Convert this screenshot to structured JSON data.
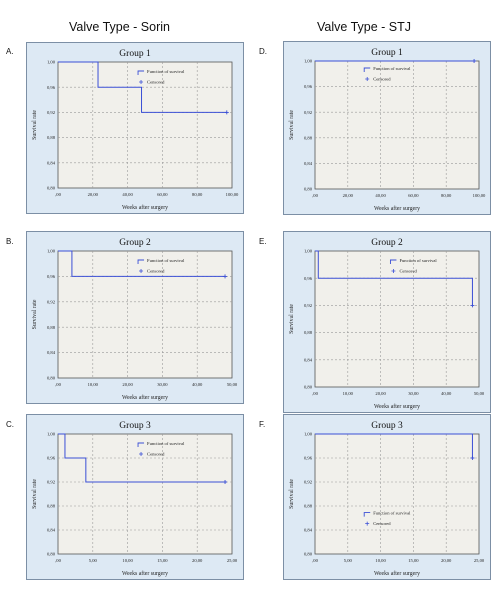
{
  "columns": [
    {
      "title": "Valve Type - Sorin"
    },
    {
      "title": "Valve Type - STJ"
    }
  ],
  "colors": {
    "panel_bg": "#dde9f4",
    "panel_border": "#7c8fa5",
    "plot_bg": "#f1f0eb",
    "line": "#3b4fd6",
    "grid": "#9a9a9a"
  },
  "chart_data": [
    {
      "type": "line",
      "panel_label": "A.",
      "title": "Group 1",
      "xlabel": "Weeks after surgery",
      "ylabel": "Survival rate",
      "xlim": [
        0,
        100
      ],
      "ylim": [
        0.8,
        1.0
      ],
      "xticks": [
        0,
        20,
        40,
        60,
        80,
        100
      ],
      "xtick_labels": [
        ",00",
        "20,00",
        "40,00",
        "60,00",
        "80,00",
        "100,00"
      ],
      "yticks": [
        0.8,
        0.84,
        0.88,
        0.92,
        0.96,
        1.0
      ],
      "ytick_labels": [
        "0,80",
        "0,84",
        "0,88",
        "0,92",
        "0,96",
        "1,00"
      ],
      "series": [
        {
          "name": "Function of survival",
          "values": [
            [
              0,
              1.0
            ],
            [
              23,
              1.0
            ],
            [
              23,
              0.96
            ],
            [
              48,
              0.96
            ],
            [
              48,
              0.92
            ],
            [
              97,
              0.92
            ]
          ]
        }
      ],
      "censored": [
        [
          97,
          0.92
        ]
      ],
      "legend": {
        "items": [
          "Function of survival",
          "Censored"
        ],
        "placement": "top-right"
      }
    },
    {
      "type": "line",
      "panel_label": "B.",
      "title": "Group 2",
      "xlabel": "Weeks after surgery",
      "ylabel": "Survival rate",
      "xlim": [
        0,
        50
      ],
      "ylim": [
        0.8,
        1.0
      ],
      "xticks": [
        0,
        10,
        20,
        30,
        40,
        50
      ],
      "xtick_labels": [
        ",00",
        "10,00",
        "20,00",
        "30,00",
        "40,00",
        "50,00"
      ],
      "yticks": [
        0.8,
        0.84,
        0.88,
        0.92,
        0.96,
        1.0
      ],
      "ytick_labels": [
        "0,80",
        "0,84",
        "0,88",
        "0,92",
        "0,96",
        "1,00"
      ],
      "series": [
        {
          "name": "Function of survival",
          "values": [
            [
              0,
              1.0
            ],
            [
              4,
              1.0
            ],
            [
              4,
              0.96
            ],
            [
              48,
              0.96
            ]
          ]
        }
      ],
      "censored": [
        [
          48,
          0.96
        ]
      ],
      "legend": {
        "items": [
          "Function of survival",
          "Censored"
        ],
        "placement": "top-right"
      }
    },
    {
      "type": "line",
      "panel_label": "C.",
      "title": "Group 3",
      "xlabel": "Weeks after surgery",
      "ylabel": "Survival rate",
      "xlim": [
        0,
        25
      ],
      "ylim": [
        0.8,
        1.0
      ],
      "xticks": [
        0,
        5,
        10,
        15,
        20,
        25
      ],
      "xtick_labels": [
        ",00",
        "5,00",
        "10,00",
        "15,00",
        "20,00",
        "25,00"
      ],
      "yticks": [
        0.8,
        0.84,
        0.88,
        0.92,
        0.96,
        1.0
      ],
      "ytick_labels": [
        "0,80",
        "0,84",
        "0,88",
        "0,92",
        "0,96",
        "1,00"
      ],
      "series": [
        {
          "name": "Function of survival",
          "values": [
            [
              0,
              1.0
            ],
            [
              1,
              1.0
            ],
            [
              1,
              0.96
            ],
            [
              4,
              0.96
            ],
            [
              4,
              0.92
            ],
            [
              24,
              0.92
            ]
          ]
        }
      ],
      "censored": [
        [
          24,
          0.92
        ]
      ],
      "legend": {
        "items": [
          "Function of survival",
          "Censored"
        ],
        "placement": "top-right"
      }
    },
    {
      "type": "line",
      "panel_label": "D.",
      "title": "Group 1",
      "xlabel": "Weeks after surgery",
      "ylabel": "Survival rate",
      "xlim": [
        0,
        100
      ],
      "ylim": [
        0.8,
        1.0
      ],
      "xticks": [
        0,
        20,
        40,
        60,
        80,
        100
      ],
      "xtick_labels": [
        ",00",
        "20,00",
        "40,00",
        "60,00",
        "80,00",
        "100,00"
      ],
      "yticks": [
        0.8,
        0.84,
        0.88,
        0.92,
        0.96,
        1.0
      ],
      "ytick_labels": [
        "0,80",
        "0,84",
        "0,88",
        "0,92",
        "0,96",
        "1,00"
      ],
      "series": [
        {
          "name": "Function of survival",
          "values": [
            [
              0,
              1.0
            ],
            [
              97,
              1.0
            ]
          ]
        }
      ],
      "censored": [
        [
          97,
          1.0
        ]
      ],
      "legend": {
        "items": [
          "Function of survival",
          "Censored"
        ],
        "placement": "top-left"
      }
    },
    {
      "type": "line",
      "panel_label": "E.",
      "title": "Group 2",
      "xlabel": "Weeks after surgery",
      "ylabel": "Survival rate",
      "xlim": [
        0,
        50
      ],
      "ylim": [
        0.8,
        1.0
      ],
      "xticks": [
        0,
        10,
        20,
        30,
        40,
        50
      ],
      "xtick_labels": [
        ",00",
        "10,00",
        "20,00",
        "30,00",
        "40,00",
        "50,00"
      ],
      "yticks": [
        0.8,
        0.84,
        0.88,
        0.92,
        0.96,
        1.0
      ],
      "ytick_labels": [
        "0,80",
        "0,84",
        "0,88",
        "0,92",
        "0,96",
        "1,00"
      ],
      "series": [
        {
          "name": "Function of survival",
          "values": [
            [
              0,
              1.0
            ],
            [
              1,
              1.0
            ],
            [
              1,
              0.96
            ],
            [
              48,
              0.96
            ],
            [
              48,
              0.92
            ]
          ]
        }
      ],
      "censored": [
        [
          48,
          0.92
        ]
      ],
      "legend": {
        "items": [
          "Function of survival",
          "Censored"
        ],
        "placement": "top-right"
      }
    },
    {
      "type": "line",
      "panel_label": "F.",
      "title": "Group 3",
      "xlabel": "Weeks after surgery",
      "ylabel": "Survival rate",
      "xlim": [
        0,
        25
      ],
      "ylim": [
        0.8,
        1.0
      ],
      "xticks": [
        0,
        5,
        10,
        15,
        20,
        25
      ],
      "xtick_labels": [
        ",00",
        "5,00",
        "10,00",
        "15,00",
        "20,00",
        "25,00"
      ],
      "yticks": [
        0.8,
        0.84,
        0.88,
        0.92,
        0.96,
        1.0
      ],
      "ytick_labels": [
        "0,80",
        "0,84",
        "0,88",
        "0,92",
        "0,96",
        "1,00"
      ],
      "series": [
        {
          "name": "Function of survival",
          "values": [
            [
              0,
              1.0
            ],
            [
              24,
              1.0
            ],
            [
              24,
              0.96
            ]
          ]
        }
      ],
      "censored": [
        [
          24,
          0.96
        ]
      ],
      "legend": {
        "items": [
          "Function of survival",
          "Censored"
        ],
        "placement": "bottom-left"
      }
    }
  ]
}
